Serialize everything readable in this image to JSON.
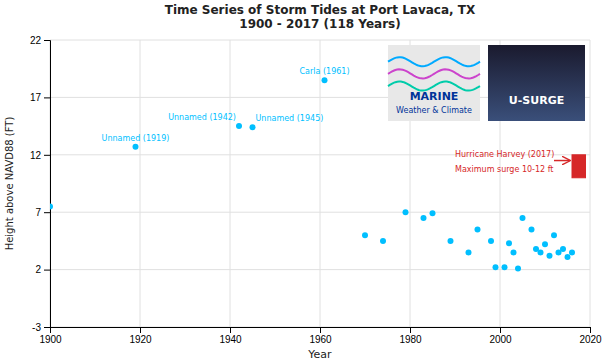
{
  "chart_data": {
    "type": "scatter",
    "title": "Time Series of Storm Tides at Port Lavaca, TX\n1900 - 2017  (118 Years)",
    "xlabel": "Year",
    "ylabel": "Height above NAVD88 (FT)",
    "color": "#00BFFF",
    "x": [
      1900,
      1919,
      1942,
      1945,
      1961,
      1970,
      1974,
      1979,
      1983,
      1985,
      1989,
      1993,
      1995,
      1998,
      1999,
      2001,
      2002,
      2003,
      2004,
      2005,
      2007,
      2008,
      2009,
      2010,
      2011,
      2012,
      2013,
      2014,
      2015,
      2016
    ],
    "values": [
      7.5,
      12.7,
      14.5,
      14.4,
      18.5,
      5.0,
      4.5,
      7.0,
      6.5,
      6.9,
      4.5,
      3.5,
      5.5,
      4.5,
      2.2,
      2.2,
      4.3,
      3.5,
      2.1,
      6.5,
      5.5,
      3.8,
      3.5,
      4.2,
      3.2,
      5.0,
      3.5,
      3.8,
      3.1,
      3.5
    ],
    "xlim": [
      1900,
      2020
    ],
    "ylim": [
      -3,
      22
    ],
    "xticks": [
      1900,
      1920,
      1940,
      1960,
      1980,
      2000,
      2020
    ],
    "yticks": [
      -3,
      2,
      7,
      12,
      17,
      22
    ],
    "grid": true,
    "annotations": [
      {
        "text": "Unnamed (1919)",
        "x": 1919,
        "y": 12.7
      },
      {
        "text": "Unnamed (1942)",
        "x": 1942,
        "y": 14.5
      },
      {
        "text": "Unnamed (1945)",
        "x": 1945,
        "y": 14.4
      },
      {
        "text": "Carla (1961)",
        "x": 1961,
        "y": 18.5
      },
      {
        "text": [
          "Hurricane Harvey (2017)",
          "Maximum surge 10-12 ft"
        ],
        "x": 1990,
        "y": 11.5
      },
      {
        "shape": "rect",
        "x": 2016,
        "x2": 2019,
        "y": 10,
        "y2": 12
      },
      {
        "shape": "arrow",
        "x": 2012,
        "x2": 2015.5,
        "y": 11.5
      },
      {
        "text": [
          "MARINE",
          "Weather & Climate"
        ]
      },
      {
        "text": [
          "U-SURGE"
        ]
      }
    ]
  }
}
